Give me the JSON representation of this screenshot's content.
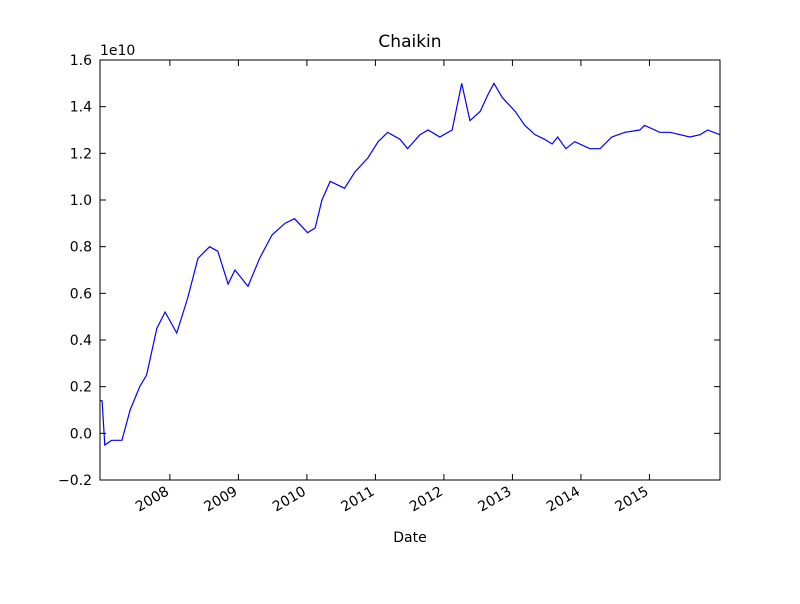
{
  "chart_data": {
    "type": "line",
    "title": "Chaikin",
    "x_label": "Date",
    "y_offset_label": "1e10",
    "color": "#0000ff",
    "x": [
      2006.98,
      2007.01,
      2007.05,
      2007.15,
      2007.3,
      2007.42,
      2007.56,
      2007.66,
      2007.81,
      2007.93,
      2008.1,
      2008.26,
      2008.41,
      2008.58,
      2008.7,
      2008.85,
      2008.95,
      2009.14,
      2009.31,
      2009.49,
      2009.68,
      2009.82,
      2010.01,
      2010.12,
      2010.22,
      2010.34,
      2010.55,
      2010.7,
      2010.89,
      2011.04,
      2011.18,
      2011.36,
      2011.47,
      2011.65,
      2011.77,
      2011.94,
      2012.12,
      2012.26,
      2012.38,
      2012.53,
      2012.64,
      2012.73,
      2012.85,
      2013.04,
      2013.18,
      2013.33,
      2013.47,
      2013.58,
      2013.66,
      2013.78,
      2013.91,
      2014.13,
      2014.28,
      2014.45,
      2014.64,
      2014.86,
      2014.93,
      2015.15,
      2015.3,
      2015.59,
      2015.74,
      2015.85,
      2016.03
    ],
    "values": [
      0.14,
      0.14,
      -0.05,
      -0.03,
      -0.03,
      0.1,
      0.2,
      0.25,
      0.45,
      0.52,
      0.43,
      0.58,
      0.75,
      0.8,
      0.78,
      0.64,
      0.7,
      0.63,
      0.75,
      0.85,
      0.9,
      0.92,
      0.86,
      0.88,
      1.0,
      1.08,
      1.05,
      1.12,
      1.18,
      1.25,
      1.29,
      1.26,
      1.22,
      1.28,
      1.3,
      1.27,
      1.3,
      1.5,
      1.34,
      1.38,
      1.45,
      1.5,
      1.44,
      1.38,
      1.32,
      1.28,
      1.26,
      1.24,
      1.27,
      1.22,
      1.25,
      1.22,
      1.22,
      1.27,
      1.29,
      1.3,
      1.32,
      1.29,
      1.29,
      1.27,
      1.28,
      1.3,
      1.28
    ],
    "xlim": [
      2006.98,
      2016.03
    ],
    "xticks": [
      2008,
      2009,
      2010,
      2011,
      2012,
      2013,
      2014,
      2015
    ],
    "ylim": [
      -0.2,
      1.6
    ],
    "yticks": [
      {
        "value": -0.2,
        "label": "−0.2"
      },
      {
        "value": 0,
        "label": "0.0"
      },
      0.2,
      0.4,
      0.6,
      0.8,
      {
        "value": 1,
        "label": "1.0"
      },
      1.2,
      1.4,
      1.6
    ]
  }
}
